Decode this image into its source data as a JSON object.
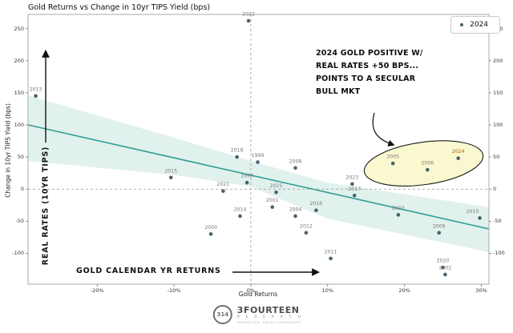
{
  "legend": {
    "label": "2024",
    "position": "top-right"
  },
  "callout": {
    "line1": "2024 GOLD POSITIVE W/",
    "line2": "REAL RATES +50 BPS...",
    "line3": "POINTS TO A SECULAR",
    "line4": "BULL MKT"
  },
  "axis_annotations": {
    "real_rates": "REAL RATES (10YR TIPS)",
    "gold_returns": "GOLD CALENDAR YR RETURNS"
  },
  "logo": {
    "icon": "314",
    "name": "3FOURTEEN",
    "sub": "R E S E A R C H",
    "tagline": "MANAGE RISK. EXPLOIT OPPORTUNITY."
  },
  "chart_data": {
    "type": "scatter",
    "title": "Gold Returns vs Change in 10yr TIPS Yield (bps)",
    "xlabel": "Gold Returns",
    "ylabel": "Change in 10yr TIPS Yield (bps)",
    "xlim": [
      -29,
      31
    ],
    "ylim": [
      -148,
      272
    ],
    "grid": false,
    "x_ticks": [
      {
        "v": -20,
        "label": "-20%"
      },
      {
        "v": -10,
        "label": "-10%"
      },
      {
        "v": 0,
        "label": "0%"
      },
      {
        "v": 10,
        "label": "10%"
      },
      {
        "v": 20,
        "label": "20%"
      },
      {
        "v": 30,
        "label": "30%"
      }
    ],
    "y_ticks": [
      250,
      200,
      150,
      100,
      50,
      0,
      -50,
      -100
    ],
    "points": [
      {
        "year": "2013",
        "x": -28,
        "y": 145
      },
      {
        "year": "2022",
        "x": -0.3,
        "y": 262
      },
      {
        "year": "2018",
        "x": -1.8,
        "y": 50
      },
      {
        "year": "1999",
        "x": 0.9,
        "y": 42
      },
      {
        "year": "2015",
        "x": -10.4,
        "y": 18
      },
      {
        "year": "2008",
        "x": 5.8,
        "y": 33
      },
      {
        "year": "1998",
        "x": -0.5,
        "y": 10
      },
      {
        "year": "2021",
        "x": -3.6,
        "y": -3
      },
      {
        "year": "2025",
        "x": 3.3,
        "y": -5
      },
      {
        "year": "2001",
        "x": 2.8,
        "y": -28
      },
      {
        "year": "2014",
        "x": -1.4,
        "y": -42
      },
      {
        "year": "2004",
        "x": 5.8,
        "y": -42
      },
      {
        "year": "2016",
        "x": 8.5,
        "y": -33
      },
      {
        "year": "2000",
        "x": -5.2,
        "y": -70
      },
      {
        "year": "2012",
        "x": 7.2,
        "y": -68
      },
      {
        "year": "2023",
        "x": 13.2,
        "y": 8
      },
      {
        "year": "2017",
        "x": 13.5,
        "y": -10
      },
      {
        "year": "2003",
        "x": 19.2,
        "y": -40
      },
      {
        "year": "2010",
        "x": 29.8,
        "y": -45,
        "dx": -9
      },
      {
        "year": "2009",
        "x": 24.5,
        "y": -68
      },
      {
        "year": "2011",
        "x": 10.4,
        "y": -108
      },
      {
        "year": "2020",
        "x": 25.0,
        "y": -122
      },
      {
        "year": "2002",
        "x": 25.3,
        "y": -133
      },
      {
        "year": "2005",
        "x": 18.5,
        "y": 40
      },
      {
        "year": "2006",
        "x": 23.0,
        "y": 30
      },
      {
        "year": "2024",
        "x": 27.0,
        "y": 48,
        "highlight": true
      }
    ],
    "trend": {
      "x1": -29,
      "y1": 100,
      "x2": 31,
      "y2": -62
    },
    "band_polygon": [
      [
        -29,
        146
      ],
      [
        -10,
        80
      ],
      [
        0,
        44
      ],
      [
        10,
        10
      ],
      [
        31,
        -28
      ],
      [
        31,
        -98
      ],
      [
        10,
        -46
      ],
      [
        0,
        4
      ],
      [
        -10,
        22
      ],
      [
        -29,
        44
      ]
    ],
    "highlight_ellipse": {
      "cx": 22.5,
      "cy": 40,
      "rx": 7.8,
      "ry": 33,
      "rotation_deg": -8
    },
    "colors": {
      "point": "#47626f",
      "point_label": "#7a7a7a",
      "highlight_label": "#c05f10",
      "trend": "#2f9e96",
      "band": "#d9ede9",
      "ellipse_fill": "#f8f7c9",
      "ellipse_stroke": "#1a1a1a",
      "zero_line": "#999999",
      "arrow": "#111111"
    }
  }
}
